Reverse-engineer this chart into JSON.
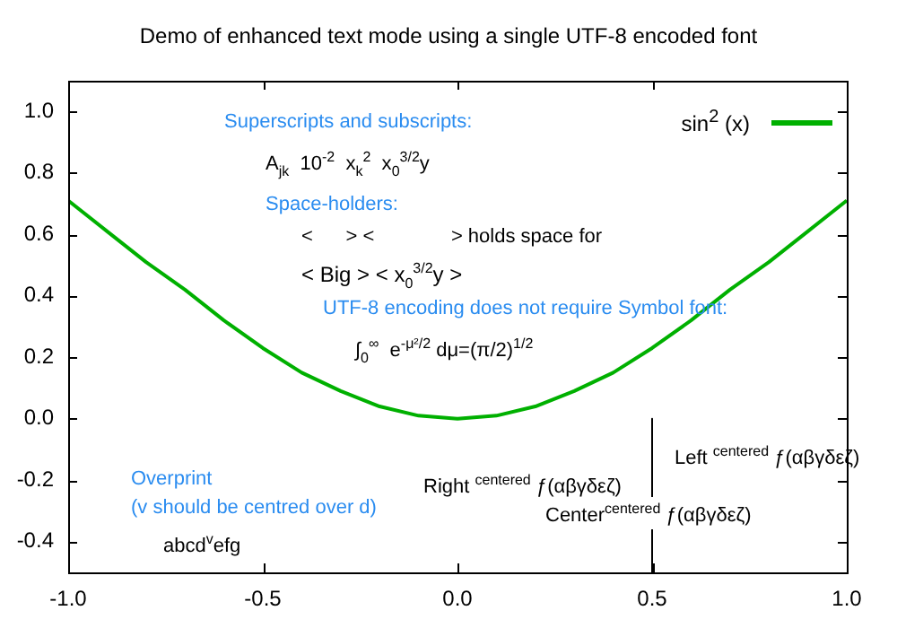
{
  "chart_data": {
    "type": "line",
    "title": "Demo of enhanced text mode using a single UTF-8 encoded font",
    "x": [
      -1,
      -0.9,
      -0.8,
      -0.7,
      -0.6,
      -0.5,
      -0.4,
      -0.3,
      -0.2,
      -0.1,
      0,
      0.1,
      0.2,
      0.3,
      0.4,
      0.5,
      0.6,
      0.7,
      0.8,
      0.9,
      1
    ],
    "series": [
      {
        "name": "sin$^{2}$ (x)",
        "color": "#00b000",
        "values": [
          0.71,
          0.61,
          0.51,
          0.42,
          0.32,
          0.23,
          0.15,
          0.09,
          0.04,
          0.01,
          0,
          0.01,
          0.04,
          0.09,
          0.15,
          0.23,
          0.32,
          0.42,
          0.51,
          0.61,
          0.71
        ]
      },
      {
        "type": "line",
        "color": "#000000",
        "x": [
          0.5,
          0.5
        ],
        "values": [
          0,
          -0.5
        ]
      }
    ],
    "xlim": [
      -1,
      1.0
    ],
    "ylim": [
      -0.5,
      1.1
    ],
    "xticks": [
      {
        "value": -1,
        "label": "-1.0"
      },
      {
        "value": -0.5,
        "label": "-0.5"
      },
      {
        "value": 0,
        "label": "0.0"
      },
      {
        "value": 0.5,
        "label": "0.5"
      },
      {
        "value": 1,
        "label": "1.0"
      }
    ],
    "yticks": [
      {
        "value": -0.4,
        "label": "-0.4"
      },
      {
        "value": -0.2,
        "label": "-0.2"
      },
      {
        "value": 0,
        "label": "0.0"
      },
      {
        "value": 0.2,
        "label": "0.2"
      },
      {
        "value": 0.4,
        "label": "0.4"
      },
      {
        "value": 0.6,
        "label": "0.6"
      },
      {
        "value": 0.8,
        "label": "0.8"
      },
      {
        "value": 1,
        "label": "1.0"
      }
    ],
    "legend": "top right",
    "grid": false,
    "marker": "none",
    "line_style": "solid",
    "annotations": [
      "Superscripts and subscripts:",
      "A$_{jk}$  10$^{-2}$  x$_{k}$$^{2}$  x$_{0}$$^{3/2}$y",
      "Space-holders:",
      "<      > <              > holds space for",
      "< Big > < x$_{0}$$^{3/2}$y >",
      "UTF-8 encoding does not require Symbol font:",
      "∫$_{0}$$^{∞}$  e$^{-μ²/2}$ dμ=(π/2)$^{1/2}$",
      "Overprint",
      "(v should be centred over d)",
      "abcd$^{v}$efg",
      "Right $^{centered}$ ƒ(αβγδεζ)",
      "Center$^{centered}$ ƒ(αβγδεζ)",
      "Left $^{centered}$ ƒ(αβγδεζ)"
    ]
  }
}
